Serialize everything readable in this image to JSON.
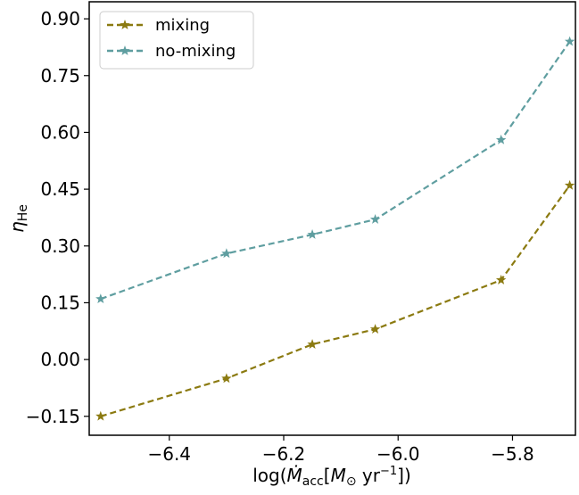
{
  "chart_data": {
    "type": "line",
    "xlabel": "log(Ṁacc[M⊙ yr⁻¹])",
    "ylabel": "ηHe",
    "xlim": [
      -6.54,
      -5.69
    ],
    "ylim": [
      -0.2,
      0.945
    ],
    "xticks": [
      -6.4,
      -6.2,
      -6.0,
      -5.8
    ],
    "xtick_labels": [
      "−6.4",
      "−6.2",
      "−6.0",
      "−5.8"
    ],
    "yticks": [
      -0.15,
      0.0,
      0.15,
      0.3,
      0.45,
      0.6,
      0.75,
      0.9
    ],
    "ytick_labels": [
      "−0.15",
      "0.00",
      "0.15",
      "0.30",
      "0.45",
      "0.60",
      "0.75",
      "0.90"
    ],
    "grid": false,
    "legend": {
      "placement": "top-left"
    },
    "series": [
      {
        "name": "mixing",
        "color": "#8b7a10",
        "marker": "star",
        "linestyle": "dashed",
        "x": [
          -6.52,
          -6.3,
          -6.15,
          -6.04,
          -5.82,
          -5.7
        ],
        "y": [
          -0.15,
          -0.05,
          0.04,
          0.08,
          0.21,
          0.46
        ]
      },
      {
        "name": "no-mixing",
        "color": "#5f9ea0",
        "marker": "star",
        "linestyle": "dashed",
        "x": [
          -6.52,
          -6.3,
          -6.15,
          -6.04,
          -5.82,
          -5.7
        ],
        "y": [
          0.16,
          0.28,
          0.33,
          0.37,
          0.58,
          0.84
        ]
      }
    ]
  }
}
